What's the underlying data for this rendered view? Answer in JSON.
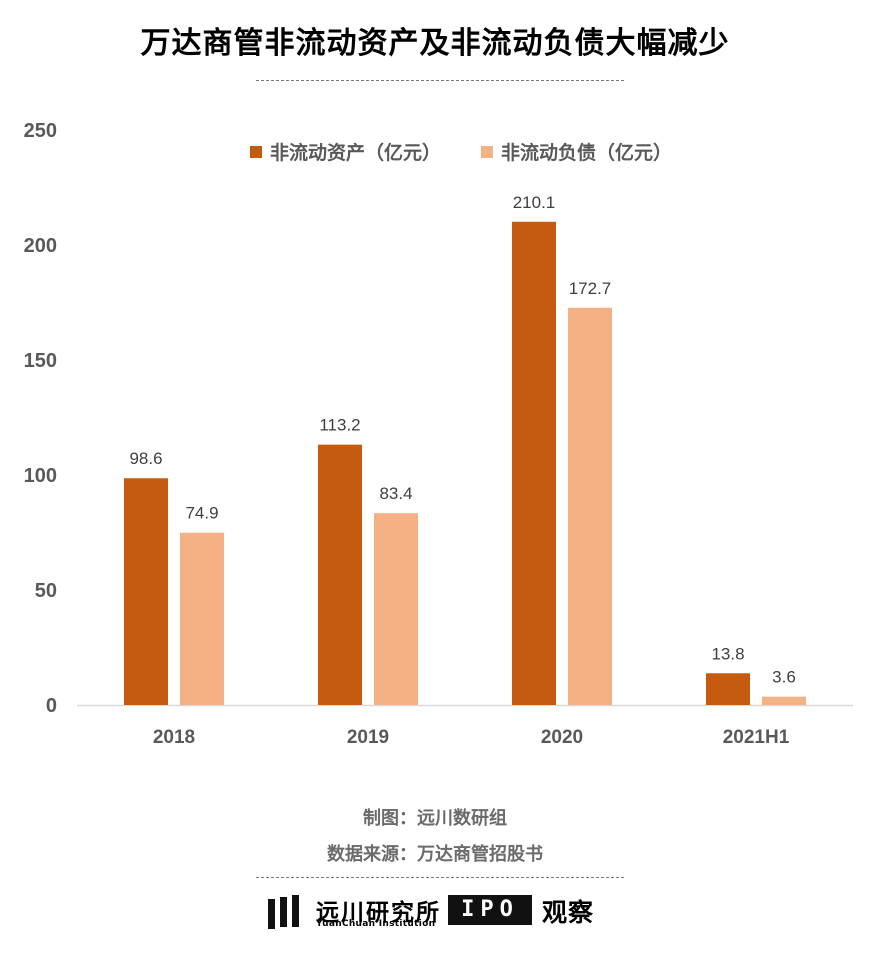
{
  "chart_data": {
    "type": "bar",
    "title": "万达商管非流动资产及非流动负债大幅减少",
    "categories": [
      "2018",
      "2019",
      "2020",
      "2021H1"
    ],
    "series": [
      {
        "name": "非流动资产（亿元）",
        "values": [
          98.6,
          113.2,
          210.1,
          13.8
        ],
        "color": "#C55A11"
      },
      {
        "name": "非流动负债（亿元）",
        "values": [
          74.9,
          83.4,
          172.7,
          3.6
        ],
        "color": "#F4B183"
      }
    ],
    "data_labels": [
      [
        "98.6",
        "113.2",
        "210.1",
        "13.8"
      ],
      [
        "74.9",
        "83.4",
        "172.7",
        "3.6"
      ]
    ],
    "y_ticks": [
      "0",
      "50",
      "100",
      "150",
      "200",
      "250"
    ],
    "ylim": [
      0,
      250
    ],
    "xlabel": "",
    "ylabel": "",
    "grid": false,
    "legend_position": "top-center"
  },
  "credits": {
    "made_by": "制图：远川数研组",
    "source": "数据来源：万达商管招股书"
  },
  "logos": {
    "yuanchuan_name": "远川研究所",
    "yuanchuan_en": "YuanChuan Institution",
    "ipo_mark": "IPO",
    "ipo_label": "观察"
  }
}
